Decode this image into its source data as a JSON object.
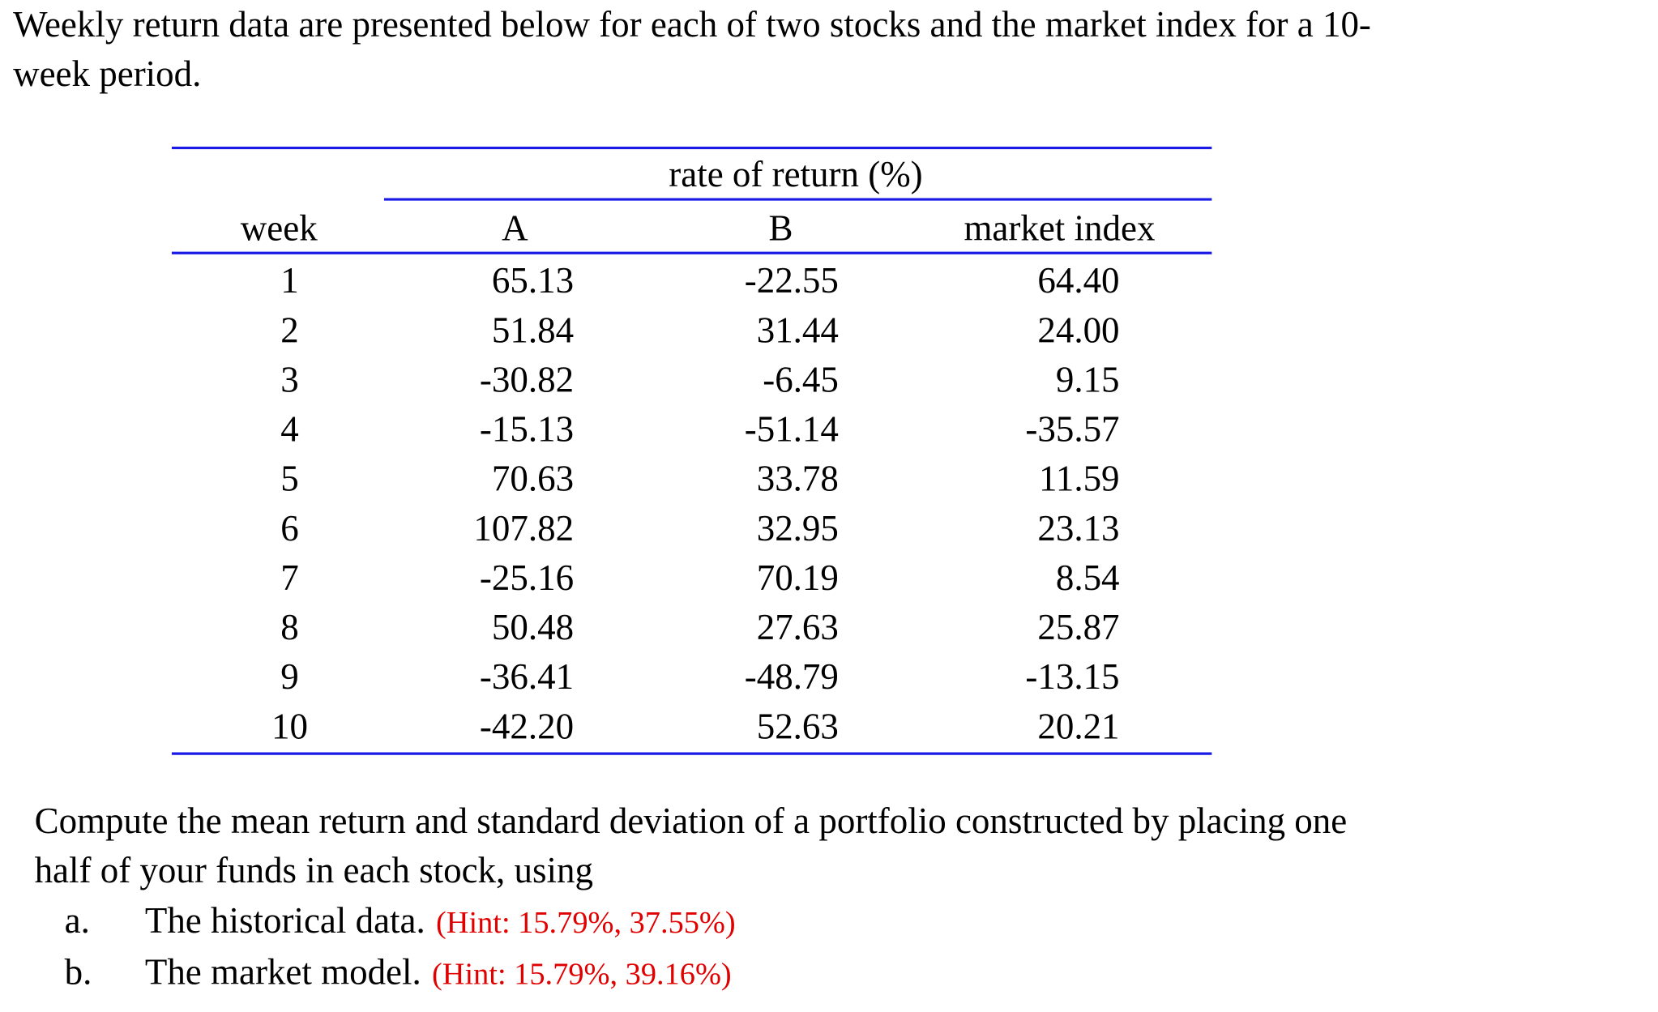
{
  "intro": [
    "Weekly return data are presented below for each of two stocks and the market index for a 10-",
    "week period."
  ],
  "table": {
    "group_header": "rate of return (%)",
    "columns": [
      "week",
      "A",
      "B",
      "market index"
    ],
    "rows": [
      [
        "1",
        "65.13",
        "-22.55",
        "64.40"
      ],
      [
        "2",
        "51.84",
        "31.44",
        "24.00"
      ],
      [
        "3",
        "-30.82",
        "-6.45",
        "9.15"
      ],
      [
        "4",
        "-15.13",
        "-51.14",
        "-35.57"
      ],
      [
        "5",
        "70.63",
        "33.78",
        "11.59"
      ],
      [
        "6",
        "107.82",
        "32.95",
        "23.13"
      ],
      [
        "7",
        "-25.16",
        "70.19",
        "8.54"
      ],
      [
        "8",
        "50.48",
        "27.63",
        "25.87"
      ],
      [
        "9",
        "-36.41",
        "-48.79",
        "-13.15"
      ],
      [
        "10",
        "-42.20",
        "52.63",
        "20.21"
      ]
    ]
  },
  "question": [
    "Compute the mean return and standard deviation of a portfolio constructed by placing one",
    "half of your funds in each stock, using"
  ],
  "items": [
    {
      "label": "a.",
      "text": "The historical data.",
      "hint": "(Hint: 15.79%, 37.55%)"
    },
    {
      "label": "b.",
      "text": "The market model.",
      "hint": "(Hint: 15.79%, 39.16%)"
    }
  ]
}
